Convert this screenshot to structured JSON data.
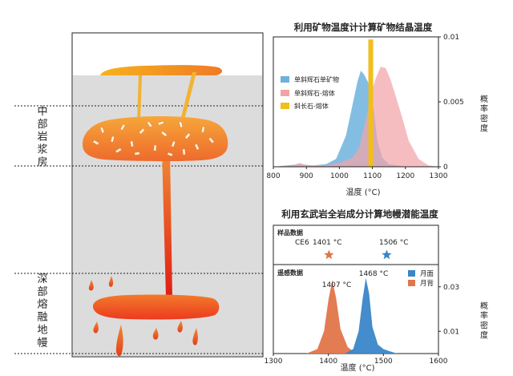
{
  "left_panel": {
    "middle_label": "中部岩浆房",
    "deep_label": "深部熔融地幔"
  },
  "top_chart": {
    "title": "利用矿物温度计计算矿物结晶温度",
    "xlabel": "温度 (°C)",
    "ylabel": "概率密度",
    "x_ticks": [
      "800",
      "900",
      "1000",
      "1100",
      "1200",
      "1300"
    ],
    "y_ticks": [
      "0",
      "0.005",
      "0.01"
    ],
    "legend": [
      "单斜辉石单矿物",
      "单斜辉石-熔体",
      "斜长石-熔体"
    ],
    "colors": {
      "cpx_mineral": "#6fb1dd",
      "cpx_melt": "#f2a3a9",
      "plag_melt": "#f1be1c"
    }
  },
  "bottom_chart": {
    "title": "利用玄武岩全岩成分计算地幔潜能温度",
    "sample_section": "样品数据",
    "sample_label": "CE6",
    "sample_value1": "1401 °C",
    "sample_value2": "1506 °C",
    "remote_section": "遥感数据",
    "peak1_label": "1407 °C",
    "peak2_label": "1468 °C",
    "legend": [
      "月面",
      "月背"
    ],
    "xlabel": "温度 (°C)",
    "ylabel": "概率密度",
    "x_ticks": [
      "1300",
      "1400",
      "1500",
      "1600"
    ],
    "y_ticks": [
      "0.01",
      "0.03"
    ],
    "colors": {
      "nearside": "#3a86c8",
      "farside": "#e2754a"
    }
  },
  "chart_data": [
    {
      "type": "area",
      "title": "利用矿物温度计计算矿物结晶温度",
      "xlabel": "温度 (°C)",
      "ylabel": "概率密度",
      "xlim": [
        800,
        1300
      ],
      "ylim": [
        0,
        0.01
      ],
      "series": [
        {
          "name": "单斜辉石单矿物",
          "x": [
            800,
            840,
            880,
            920,
            960,
            990,
            1020,
            1040,
            1055,
            1065,
            1075,
            1085,
            1095,
            1105,
            1115,
            1130,
            1150,
            1200
          ],
          "values": [
            0,
            0.0001,
            0.0002,
            0.0001,
            0.0002,
            0.0006,
            0.0024,
            0.0048,
            0.0066,
            0.0074,
            0.0071,
            0.0066,
            0.006,
            0.0042,
            0.002,
            0.0007,
            0.0002,
            0
          ]
        },
        {
          "name": "单斜辉石-熔体",
          "x": [
            800,
            860,
            880,
            900,
            960,
            1000,
            1040,
            1060,
            1080,
            1095,
            1110,
            1125,
            1140,
            1155,
            1170,
            1190,
            1210,
            1240,
            1270,
            1300
          ],
          "values": [
            0,
            0.0001,
            0.0003,
            0.0001,
            0.0001,
            0.0003,
            0.0007,
            0.0015,
            0.0036,
            0.0055,
            0.0068,
            0.0077,
            0.0076,
            0.0067,
            0.0055,
            0.0038,
            0.002,
            0.0006,
            0.0001,
            0
          ]
        },
        {
          "name": "斜长石-熔体",
          "x": [
            1090,
            1095,
            1100
          ],
          "values": [
            0,
            0.0098,
            0
          ]
        }
      ]
    },
    {
      "type": "area",
      "title": "利用玄武岩全岩成分计算地幔潜能温度",
      "xlabel": "温度 (°C)",
      "ylabel": "概率密度",
      "xlim": [
        1300,
        1600
      ],
      "ylim": [
        0,
        0.04
      ],
      "series": [
        {
          "name": "月背",
          "x": [
            1360,
            1380,
            1392,
            1400,
            1407,
            1414,
            1422,
            1435,
            1450
          ],
          "values": [
            0,
            0.002,
            0.01,
            0.024,
            0.033,
            0.025,
            0.011,
            0.003,
            0
          ]
        },
        {
          "name": "月面",
          "x": [
            1430,
            1445,
            1455,
            1462,
            1468,
            1474,
            1480,
            1490,
            1500,
            1512,
            1525
          ],
          "values": [
            0,
            0.002,
            0.01,
            0.024,
            0.034,
            0.027,
            0.012,
            0.004,
            0.002,
            0.001,
            0
          ]
        }
      ],
      "points": [
        {
          "label": "CE6",
          "x": 1401,
          "series": "月背"
        },
        {
          "label": "CE6",
          "x": 1506,
          "series": "月面"
        }
      ]
    }
  ]
}
